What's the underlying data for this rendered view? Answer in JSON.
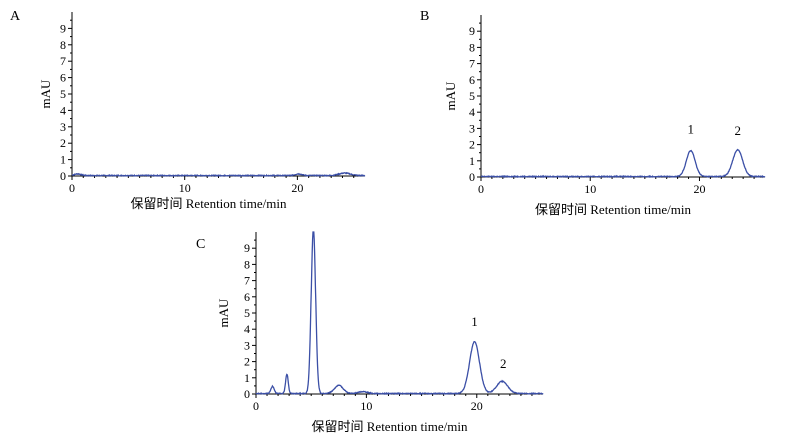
{
  "chart_data": [
    {
      "type": "line",
      "panel_label": "A",
      "xlabel": "保留时间 Retention time/min",
      "ylabel": "mAU",
      "xlim": [
        0,
        26
      ],
      "ylim": [
        0,
        10
      ],
      "x_ticks": [
        "0",
        "10",
        "20"
      ],
      "y_ticks": [
        "0",
        "1",
        "2",
        "3",
        "4",
        "5",
        "6",
        "7",
        "8",
        "9"
      ],
      "peak_labels": [],
      "series": [
        {
          "color": "#3b4fa6",
          "peaks": [
            [
              0.5,
              0.1,
              0.3
            ],
            [
              20.1,
              0.1,
              0.3
            ],
            [
              24.2,
              0.15,
              0.5
            ]
          ]
        }
      ]
    },
    {
      "type": "line",
      "panel_label": "B",
      "xlabel": "保留时间 Retention time/min",
      "ylabel": "mAU",
      "xlim": [
        0,
        26
      ],
      "ylim": [
        0,
        10
      ],
      "x_ticks": [
        "0",
        "10",
        "20"
      ],
      "y_ticks": [
        "0",
        "1",
        "2",
        "3",
        "4",
        "5",
        "6",
        "7",
        "8",
        "9"
      ],
      "peak_labels": [
        {
          "text": "1",
          "x": 19.2,
          "y": 2.7
        },
        {
          "text": "2",
          "x": 23.5,
          "y": 2.6
        }
      ],
      "series": [
        {
          "color": "#3b4fa6",
          "peaks": [
            [
              19.2,
              1.6,
              0.4
            ],
            [
              23.5,
              1.65,
              0.45
            ]
          ]
        }
      ]
    },
    {
      "type": "line",
      "panel_label": "C",
      "xlabel": "保留时间 Retention time/min",
      "ylabel": "mAU",
      "xlim": [
        0,
        26
      ],
      "ylim": [
        0,
        10
      ],
      "x_ticks": [
        "0",
        "10",
        "20"
      ],
      "y_ticks": [
        "0",
        "1",
        "2",
        "3",
        "4",
        "5",
        "6",
        "7",
        "8",
        "9"
      ],
      "peak_labels": [
        {
          "text": "1",
          "x": 19.8,
          "y": 4.2
        },
        {
          "text": "2",
          "x": 22.4,
          "y": 1.6
        }
      ],
      "series": [
        {
          "color": "#3b4fa6",
          "peaks": [
            [
              1.5,
              0.45,
              0.15
            ],
            [
              2.8,
              1.2,
              0.12
            ],
            [
              5.2,
              10.2,
              0.2
            ],
            [
              7.5,
              0.5,
              0.4
            ],
            [
              9.7,
              0.12,
              0.4
            ],
            [
              19.8,
              3.2,
              0.45
            ],
            [
              22.3,
              0.75,
              0.5
            ]
          ]
        }
      ]
    }
  ]
}
